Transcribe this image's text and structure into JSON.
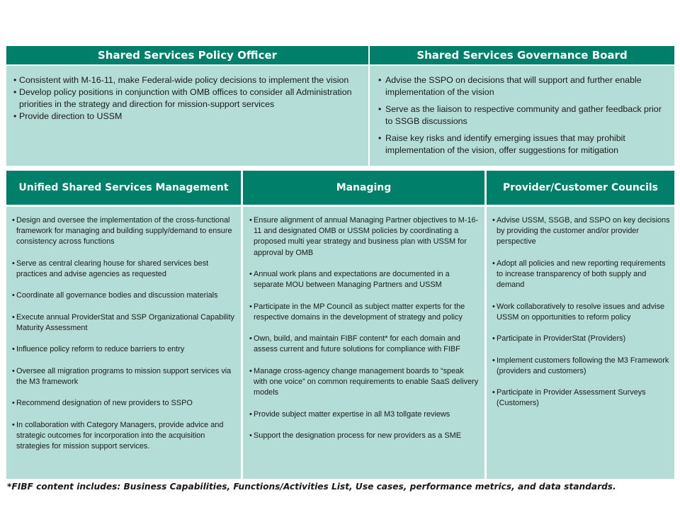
{
  "top": {
    "sspo": {
      "title": "Shared Services Policy Officer",
      "bullets": [
        "Consistent with M-16-11, make Federal-wide policy  decisions to implement the vision",
        "Develop policy positions in conjunction with OMB offices to consider all Administration priorities in the strategy and direction for mission-support services",
        "Provide direction to USSM"
      ]
    },
    "ssgb": {
      "title": "Shared Services Governance Board",
      "bullets": [
        "Advise the SSPO on decisions that will support and further enable implementation of the vision",
        "Serve as the liaison to respective community and gather feedback prior to SSGB discussions",
        "Raise key risks and identify emerging issues that may prohibit implementation of the vision, offer suggestions for mitigation"
      ]
    }
  },
  "bottom": {
    "ussm": {
      "title": "Unified Shared Services Management",
      "bullets": [
        "Design and oversee the implementation of the cross-functional framework for managing and building supply/demand to ensure consistency across functions",
        "Serve as central clearing house for shared services best practices and advise agencies as requested",
        "Coordinate all governance bodies and discussion materials",
        "Execute annual ProviderStat and SSP Organizational Capability Maturity Assessment",
        "Influence policy reform to reduce barriers to entry",
        "Oversee all migration programs to mission support services via the M3 framework",
        "Recommend designation of new providers to SSPO",
        "In collaboration with Category Managers, provide advice and strategic outcomes for incorporation into the acquisition strategies for mission support services."
      ]
    },
    "managing": {
      "title": "Managing",
      "bullets": [
        "Ensure alignment of annual Managing Partner objectives to M-16-11 and designated OMB or USSM policies by coordinating a proposed multi year strategy and business plan with USSM for approval by OMB",
        "Annual work plans  and expectations are documented in a separate MOU between Managing Partners and USSM",
        "Participate in the MP Council as  subject matter experts for the respective domains in the development of strategy and policy",
        "Own, build, and maintain FIBF content* for each domain and assess current and future solutions for compliance with FIBF",
        "Manage cross-agency change management boards to “speak with one voice” on common requirements to enable SaaS delivery models",
        "Provide subject matter expertise in all M3 tollgate reviews",
        "Support the designation process for new providers as a SME"
      ]
    },
    "councils": {
      "title": "Provider/Customer Councils",
      "bullets": [
        "Advise USSM, SSGB, and SSPO on key decisions by providing the customer and/or provider perspective",
        "Adopt all policies and new reporting requirements to increase transparency of both supply and demand",
        "Work collaboratively to resolve issues and advise USSM on opportunities to reform policy",
        "Participate in ProviderStat (Providers)",
        "Implement customers following the M3 Framework (providers and customers)",
        "Participate in Provider Assessment Surveys (Customers)"
      ]
    }
  },
  "footnote": "*FIBF content includes:  Business Capabilities, Functions/Activities List, Use cases, performance metrics, and data standards.",
  "colors": {
    "header": "#00806b",
    "cell": "#b3ddd6"
  }
}
